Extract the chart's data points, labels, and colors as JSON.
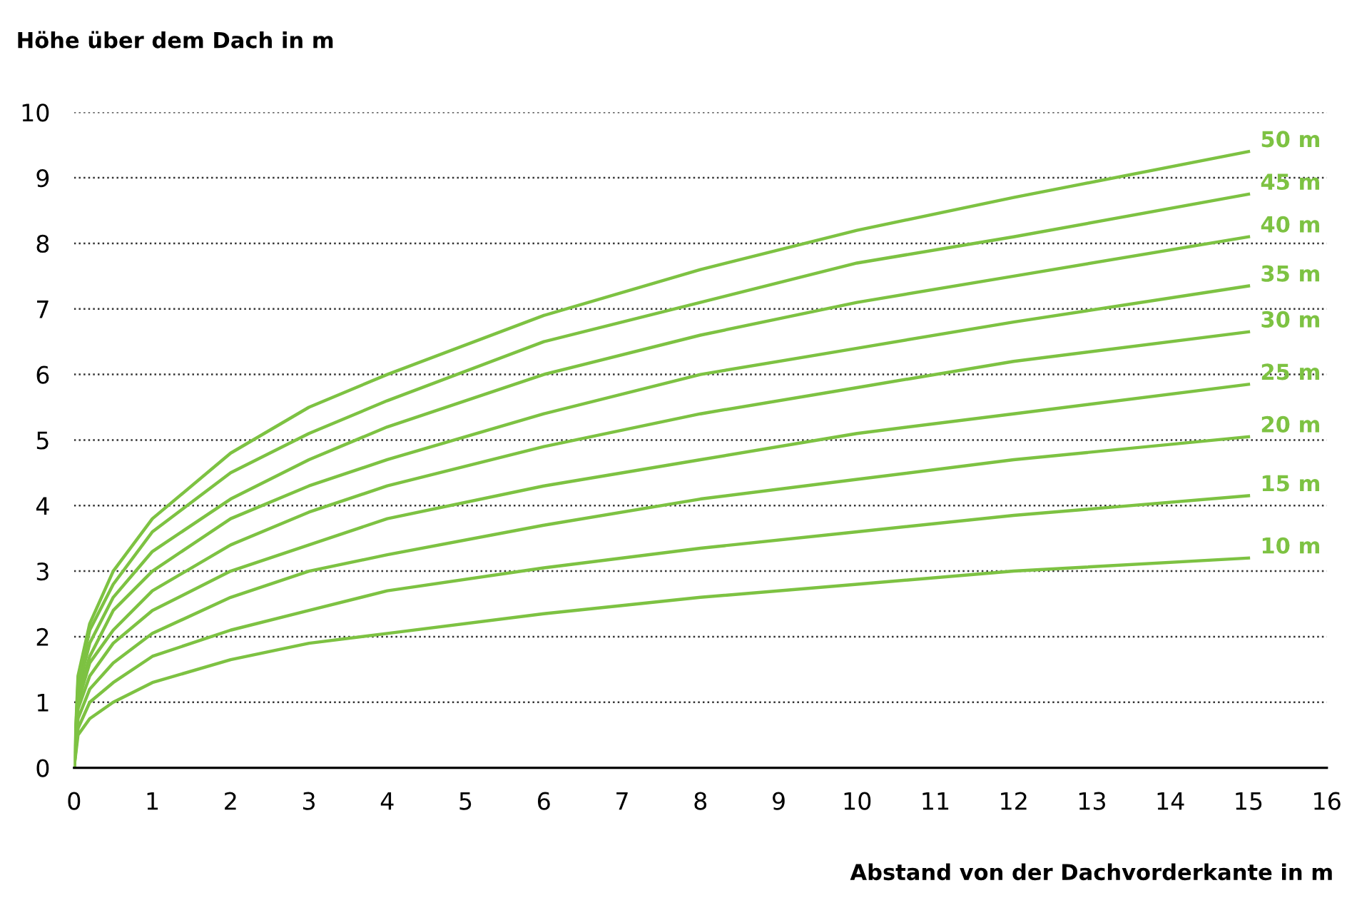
{
  "chart_data": {
    "type": "line",
    "ylabel": "Höhe über dem Dach in m",
    "xlabel": "Abstand von der Dachvorderkante in m",
    "xlim": [
      0,
      16
    ],
    "xticks": [
      0,
      1,
      2,
      3,
      4,
      5,
      6,
      7,
      8,
      9,
      10,
      11,
      12,
      13,
      14,
      15,
      16
    ],
    "ylim": [
      0,
      10
    ],
    "yticks": [
      0,
      1,
      2,
      3,
      4,
      5,
      6,
      7,
      8,
      9,
      10
    ],
    "grid": "y",
    "line_style": "solid",
    "marker": "none",
    "x": [
      0,
      0.05,
      0.2,
      0.5,
      1,
      2,
      3,
      4,
      6,
      8,
      10,
      12,
      15
    ],
    "series": [
      {
        "name": "50 m",
        "color": "#7dc242",
        "values": [
          0,
          1.4,
          2.2,
          3.0,
          3.8,
          4.8,
          5.5,
          6.0,
          6.9,
          7.6,
          8.2,
          8.7,
          9.4
        ]
      },
      {
        "name": "45 m",
        "color": "#7dc242",
        "values": [
          0,
          1.3,
          2.1,
          2.8,
          3.6,
          4.5,
          5.1,
          5.6,
          6.5,
          7.1,
          7.7,
          8.1,
          8.75
        ]
      },
      {
        "name": "40 m",
        "color": "#7dc242",
        "values": [
          0,
          1.2,
          1.9,
          2.6,
          3.3,
          4.1,
          4.7,
          5.2,
          6.0,
          6.6,
          7.1,
          7.5,
          8.1
        ]
      },
      {
        "name": "35 m",
        "color": "#7dc242",
        "values": [
          0,
          1.1,
          1.7,
          2.4,
          3.0,
          3.8,
          4.3,
          4.7,
          5.4,
          6.0,
          6.4,
          6.8,
          7.35
        ]
      },
      {
        "name": "30 m",
        "color": "#7dc242",
        "values": [
          0,
          1.0,
          1.6,
          2.1,
          2.7,
          3.4,
          3.9,
          4.3,
          4.9,
          5.4,
          5.8,
          6.2,
          6.65
        ]
      },
      {
        "name": "25 m",
        "color": "#7dc242",
        "values": [
          0,
          0.9,
          1.4,
          1.9,
          2.4,
          3.0,
          3.4,
          3.8,
          4.3,
          4.7,
          5.1,
          5.4,
          5.85
        ]
      },
      {
        "name": "20 m",
        "color": "#7dc242",
        "values": [
          0,
          0.75,
          1.2,
          1.6,
          2.05,
          2.6,
          3.0,
          3.25,
          3.7,
          4.1,
          4.4,
          4.7,
          5.05
        ]
      },
      {
        "name": "15 m",
        "color": "#7dc242",
        "values": [
          0,
          0.6,
          1.0,
          1.3,
          1.7,
          2.1,
          2.4,
          2.7,
          3.05,
          3.35,
          3.6,
          3.85,
          4.15
        ]
      },
      {
        "name": "10 m",
        "color": "#7dc242",
        "values": [
          0,
          0.5,
          0.75,
          1.0,
          1.3,
          1.65,
          1.9,
          2.05,
          2.35,
          2.6,
          2.8,
          3.0,
          3.2
        ]
      }
    ]
  }
}
